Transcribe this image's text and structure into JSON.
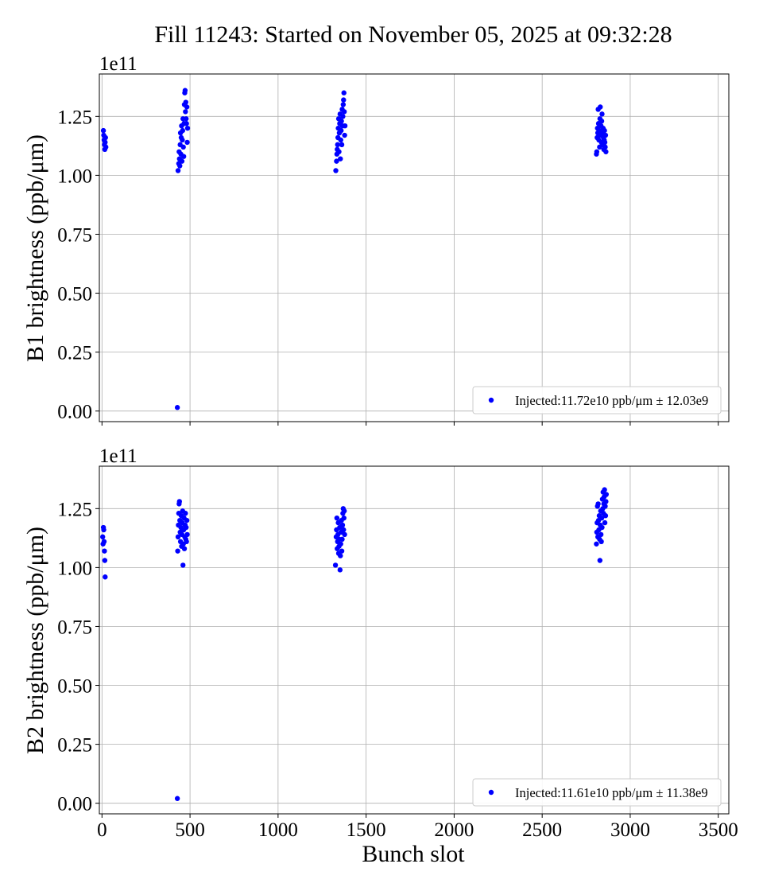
{
  "title": "Fill 11243: Started on November 05, 2025 at 09:32:28",
  "xlabel": "Bunch slot",
  "chart_data": [
    {
      "type": "scatter",
      "ylabel": "B1 brightness (ppb/μm)",
      "offset_label": "1e11",
      "y_scale": 100000000000.0,
      "xlim": [
        -15,
        3560
      ],
      "ylim": [
        -0.045,
        1.43
      ],
      "xticks": [
        0,
        500,
        1000,
        1500,
        2000,
        2500,
        3000,
        3500
      ],
      "yticks": [
        "0.00",
        "0.25",
        "0.50",
        "0.75",
        "1.00",
        "1.25"
      ],
      "grid": true,
      "legend_position": "lower right",
      "marker_color": "#0000ff",
      "series": [
        {
          "name": "Injected:11.72e10 ppb/μm ± 12.03e9",
          "points": [
            [
              8,
              1.19
            ],
            [
              10,
              1.17
            ],
            [
              12,
              1.15
            ],
            [
              14,
              1.13
            ],
            [
              16,
              1.11
            ],
            [
              18,
              1.14
            ],
            [
              20,
              1.16
            ],
            [
              22,
              1.12
            ],
            [
              428,
              0.015
            ],
            [
              432,
              1.02
            ],
            [
              436,
              1.05
            ],
            [
              438,
              1.1
            ],
            [
              440,
              1.07
            ],
            [
              442,
              1.04
            ],
            [
              444,
              1.13
            ],
            [
              446,
              1.18
            ],
            [
              448,
              1.09
            ],
            [
              450,
              1.16
            ],
            [
              452,
              1.21
            ],
            [
              454,
              1.06
            ],
            [
              456,
              1.15
            ],
            [
              458,
              1.19
            ],
            [
              460,
              1.24
            ],
            [
              462,
              1.12
            ],
            [
              464,
              1.08
            ],
            [
              466,
              1.22
            ],
            [
              468,
              1.3
            ],
            [
              470,
              1.35
            ],
            [
              472,
              1.36
            ],
            [
              474,
              1.27
            ],
            [
              476,
              1.31
            ],
            [
              478,
              1.24
            ],
            [
              480,
              1.22
            ],
            [
              482,
              1.29
            ],
            [
              484,
              1.14
            ],
            [
              486,
              1.2
            ],
            [
              1328,
              1.02
            ],
            [
              1332,
              1.06
            ],
            [
              1334,
              1.09
            ],
            [
              1336,
              1.11
            ],
            [
              1338,
              1.13
            ],
            [
              1340,
              1.16
            ],
            [
              1342,
              1.2
            ],
            [
              1344,
              1.24
            ],
            [
              1346,
              1.1
            ],
            [
              1348,
              1.18
            ],
            [
              1350,
              1.22
            ],
            [
              1352,
              1.26
            ],
            [
              1354,
              1.07
            ],
            [
              1356,
              1.15
            ],
            [
              1358,
              1.19
            ],
            [
              1360,
              1.23
            ],
            [
              1362,
              1.13
            ],
            [
              1364,
              1.28
            ],
            [
              1366,
              1.21
            ],
            [
              1368,
              1.25
            ],
            [
              1370,
              1.3
            ],
            [
              1372,
              1.32
            ],
            [
              1374,
              1.35
            ],
            [
              1376,
              1.27
            ],
            [
              1378,
              1.17
            ],
            [
              1380,
              1.21
            ],
            [
              2808,
              1.09
            ],
            [
              2810,
              1.1
            ],
            [
              2812,
              1.16
            ],
            [
              2814,
              1.2
            ],
            [
              2816,
              1.18
            ],
            [
              2818,
              1.28
            ],
            [
              2820,
              1.22
            ],
            [
              2822,
              1.15
            ],
            [
              2824,
              1.19
            ],
            [
              2826,
              1.12
            ],
            [
              2828,
              1.24
            ],
            [
              2830,
              1.29
            ],
            [
              2832,
              1.17
            ],
            [
              2834,
              1.21
            ],
            [
              2836,
              1.14
            ],
            [
              2838,
              1.23
            ],
            [
              2840,
              1.26
            ],
            [
              2842,
              1.18
            ],
            [
              2844,
              1.13
            ],
            [
              2846,
              1.2
            ],
            [
              2848,
              1.16
            ],
            [
              2850,
              1.11
            ],
            [
              2852,
              1.15
            ],
            [
              2854,
              1.19
            ],
            [
              2856,
              1.14
            ],
            [
              2858,
              1.12
            ],
            [
              2860,
              1.17
            ],
            [
              2862,
              1.1
            ]
          ]
        }
      ]
    },
    {
      "type": "scatter",
      "ylabel": "B2 brightness (ppb/μm)",
      "offset_label": "1e11",
      "y_scale": 100000000000.0,
      "xlim": [
        -15,
        3560
      ],
      "ylim": [
        -0.045,
        1.43
      ],
      "xticks": [
        0,
        500,
        1000,
        1500,
        2000,
        2500,
        3000,
        3500
      ],
      "yticks": [
        "0.00",
        "0.25",
        "0.50",
        "0.75",
        "1.00",
        "1.25"
      ],
      "grid": true,
      "legend_position": "lower right",
      "marker_color": "#0000ff",
      "series": [
        {
          "name": "Injected:11.61e10 ppb/μm ± 11.38e9",
          "points": [
            [
              4,
              1.13
            ],
            [
              6,
              1.1
            ],
            [
              8,
              1.17
            ],
            [
              10,
              1.16
            ],
            [
              12,
              1.11
            ],
            [
              14,
              1.07
            ],
            [
              16,
              1.03
            ],
            [
              18,
              0.96
            ],
            [
              428,
              0.02
            ],
            [
              430,
              1.07
            ],
            [
              432,
              1.13
            ],
            [
              434,
              1.18
            ],
            [
              436,
              1.23
            ],
            [
              438,
              1.27
            ],
            [
              440,
              1.28
            ],
            [
              442,
              1.2
            ],
            [
              444,
              1.15
            ],
            [
              446,
              1.11
            ],
            [
              448,
              1.17
            ],
            [
              450,
              1.22
            ],
            [
              452,
              1.09
            ],
            [
              454,
              1.14
            ],
            [
              456,
              1.19
            ],
            [
              458,
              1.24
            ],
            [
              460,
              1.01
            ],
            [
              462,
              1.1
            ],
            [
              464,
              1.16
            ],
            [
              466,
              1.21
            ],
            [
              468,
              1.08
            ],
            [
              470,
              1.13
            ],
            [
              472,
              1.18
            ],
            [
              474,
              1.23
            ],
            [
              476,
              1.12
            ],
            [
              478,
              1.17
            ],
            [
              480,
              1.11
            ],
            [
              482,
              1.2
            ],
            [
              484,
              1.14
            ],
            [
              1326,
              1.01
            ],
            [
              1330,
              1.13
            ],
            [
              1332,
              1.16
            ],
            [
              1334,
              1.21
            ],
            [
              1336,
              1.08
            ],
            [
              1338,
              1.11
            ],
            [
              1340,
              1.14
            ],
            [
              1342,
              1.19
            ],
            [
              1344,
              1.06
            ],
            [
              1346,
              1.09
            ],
            [
              1348,
              1.12
            ],
            [
              1350,
              1.17
            ],
            [
              1352,
              0.99
            ],
            [
              1354,
              1.05
            ],
            [
              1356,
              1.1
            ],
            [
              1358,
              1.15
            ],
            [
              1360,
              1.2
            ],
            [
              1362,
              1.07
            ],
            [
              1364,
              1.12
            ],
            [
              1366,
              1.18
            ],
            [
              1368,
              1.23
            ],
            [
              1370,
              1.25
            ],
            [
              1372,
              1.16
            ],
            [
              1374,
              1.21
            ],
            [
              1376,
              1.24
            ],
            [
              1378,
              1.14
            ],
            [
              2808,
              1.1
            ],
            [
              2810,
              1.15
            ],
            [
              2812,
              1.19
            ],
            [
              2814,
              1.26
            ],
            [
              2816,
              1.13
            ],
            [
              2818,
              1.27
            ],
            [
              2820,
              1.2
            ],
            [
              2822,
              1.16
            ],
            [
              2824,
              1.22
            ],
            [
              2826,
              1.12
            ],
            [
              2828,
              1.03
            ],
            [
              2830,
              1.18
            ],
            [
              2832,
              1.24
            ],
            [
              2834,
              1.14
            ],
            [
              2836,
              1.11
            ],
            [
              2838,
              1.21
            ],
            [
              2840,
              1.17
            ],
            [
              2842,
              1.29
            ],
            [
              2844,
              1.25
            ],
            [
              2846,
              1.32
            ],
            [
              2848,
              1.23
            ],
            [
              2850,
              1.27
            ],
            [
              2852,
              1.3
            ],
            [
              2854,
              1.33
            ],
            [
              2856,
              1.19
            ],
            [
              2858,
              1.26
            ],
            [
              2860,
              1.22
            ],
            [
              2862,
              1.28
            ],
            [
              2864,
              1.31
            ]
          ]
        }
      ]
    }
  ]
}
